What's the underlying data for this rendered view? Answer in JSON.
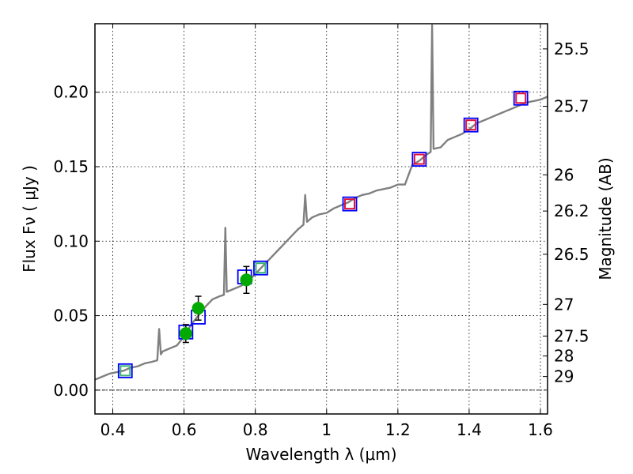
{
  "chart_data": {
    "type": "scatter",
    "xlabel": "Wavelength  λ (μm)",
    "ylabel_left": "Flux  Fν  ( μJy )",
    "ylabel_right": "Magnitude (AB)",
    "xlim": [
      0.35,
      1.62
    ],
    "ylim": [
      -0.016,
      0.246
    ],
    "x_ticks": [
      0.4,
      0.6,
      0.8,
      1.0,
      1.2,
      1.4,
      1.6
    ],
    "x_tick_labels": [
      "0.4",
      "0.6",
      "0.8",
      "1",
      "1.2",
      "1.4",
      "1.6"
    ],
    "y_ticks": [
      0.0,
      0.05,
      0.1,
      0.15,
      0.2
    ],
    "y_tick_labels": [
      "0.00",
      "0.05",
      "0.10",
      "0.15",
      "0.20"
    ],
    "right_ticks": [
      {
        "label": "25.5",
        "value": 25.5
      },
      {
        "label": "25.7",
        "value": 25.7
      },
      {
        "label": "26",
        "value": 26.0
      },
      {
        "label": "26.2",
        "value": 26.2
      },
      {
        "label": "26.5",
        "value": 26.5
      },
      {
        "label": "27",
        "value": 27.0
      },
      {
        "label": "27.5",
        "value": 27.5
      },
      {
        "label": "28",
        "value": 28.0
      },
      {
        "label": "29",
        "value": 29.0
      }
    ],
    "grid": true,
    "zero_line": true,
    "colors": {
      "spectrum": "#808080",
      "observed": "#00aa00",
      "model_box": "#0000ff",
      "green_box": "#3cb371",
      "red_box": "#dc143c",
      "errorbar": "#000000"
    },
    "spectrum": {
      "x": [
        0.35,
        0.37,
        0.39,
        0.41,
        0.43,
        0.45,
        0.47,
        0.49,
        0.51,
        0.525,
        0.53,
        0.535,
        0.54,
        0.56,
        0.58,
        0.6,
        0.62,
        0.64,
        0.66,
        0.68,
        0.7,
        0.712,
        0.716,
        0.72,
        0.74,
        0.76,
        0.78,
        0.8,
        0.82,
        0.84,
        0.86,
        0.88,
        0.9,
        0.92,
        0.935,
        0.94,
        0.945,
        0.96,
        0.98,
        1.0,
        1.02,
        1.04,
        1.06,
        1.08,
        1.1,
        1.12,
        1.14,
        1.16,
        1.18,
        1.2,
        1.22,
        1.24,
        1.26,
        1.28,
        1.292,
        1.296,
        1.3,
        1.32,
        1.34,
        1.36,
        1.38,
        1.4,
        1.42,
        1.44,
        1.46,
        1.48,
        1.5,
        1.52,
        1.54,
        1.56,
        1.58,
        1.6,
        1.62
      ],
      "y": [
        0.007,
        0.009,
        0.011,
        0.012,
        0.013,
        0.015,
        0.016,
        0.018,
        0.019,
        0.02,
        0.041,
        0.024,
        0.026,
        0.028,
        0.03,
        0.036,
        0.044,
        0.05,
        0.056,
        0.061,
        0.063,
        0.064,
        0.109,
        0.066,
        0.068,
        0.07,
        0.073,
        0.078,
        0.083,
        0.088,
        0.093,
        0.098,
        0.103,
        0.108,
        0.111,
        0.131,
        0.113,
        0.116,
        0.118,
        0.119,
        0.122,
        0.124,
        0.126,
        0.129,
        0.131,
        0.132,
        0.134,
        0.135,
        0.136,
        0.138,
        0.138,
        0.151,
        0.154,
        0.158,
        0.16,
        0.245,
        0.162,
        0.163,
        0.168,
        0.17,
        0.172,
        0.175,
        0.179,
        0.181,
        0.183,
        0.185,
        0.187,
        0.189,
        0.191,
        0.193,
        0.194,
        0.195,
        0.197
      ]
    },
    "model_boxes": [
      {
        "x": 0.435,
        "y": 0.013,
        "inner": "green"
      },
      {
        "x": 0.605,
        "y": 0.039,
        "inner": "none"
      },
      {
        "x": 0.64,
        "y": 0.049,
        "inner": "none"
      },
      {
        "x": 0.77,
        "y": 0.076,
        "inner": "none"
      },
      {
        "x": 0.815,
        "y": 0.082,
        "inner": "green"
      },
      {
        "x": 1.065,
        "y": 0.125,
        "inner": "red"
      },
      {
        "x": 1.26,
        "y": 0.155,
        "inner": "red"
      },
      {
        "x": 1.405,
        "y": 0.178,
        "inner": "red"
      },
      {
        "x": 1.545,
        "y": 0.196,
        "inner": "red"
      }
    ],
    "observed": [
      {
        "x": 0.605,
        "y": 0.038,
        "err": 0.006
      },
      {
        "x": 0.64,
        "y": 0.055,
        "err": 0.008
      },
      {
        "x": 0.775,
        "y": 0.074,
        "err": 0.009
      }
    ]
  }
}
